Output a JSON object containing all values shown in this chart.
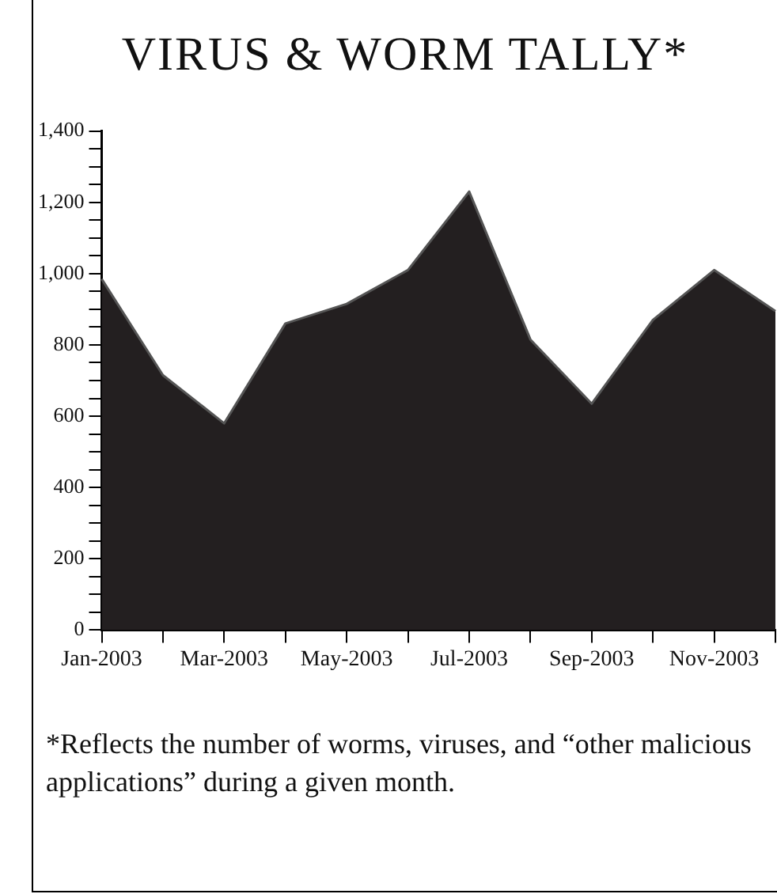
{
  "chart_data": {
    "type": "area",
    "title": "VIRUS & WORM TALLY*",
    "categories": [
      "Jan-2003",
      null,
      "Mar-2003",
      null,
      "May-2003",
      null,
      "Jul-2003",
      null,
      "Sep-2003",
      null,
      "Nov-2003",
      null
    ],
    "series": [
      {
        "color": "#231f20",
        "values": [
          985,
          715,
          580,
          860,
          915,
          1010,
          1230,
          815,
          635,
          870,
          1010,
          895
        ]
      }
    ],
    "ylim": [
      0,
      1400
    ],
    "yticks": [
      0,
      {
        "value": 50,
        "label": null
      },
      {
        "value": 100,
        "label": null
      },
      {
        "value": 150,
        "label": null
      },
      200,
      {
        "value": 250,
        "label": null
      },
      {
        "value": 300,
        "label": null
      },
      {
        "value": 350,
        "label": null
      },
      400,
      {
        "value": 450,
        "label": null
      },
      {
        "value": 500,
        "label": null
      },
      {
        "value": 550,
        "label": null
      },
      600,
      {
        "value": 650,
        "label": null
      },
      {
        "value": 700,
        "label": null
      },
      {
        "value": 750,
        "label": null
      },
      800,
      {
        "value": 850,
        "label": null
      },
      {
        "value": 900,
        "label": null
      },
      {
        "value": 950,
        "label": null
      },
      {
        "value": 1000,
        "label": "1,000"
      },
      {
        "value": 1050,
        "label": null
      },
      {
        "value": 1100,
        "label": null
      },
      {
        "value": 1150,
        "label": null
      },
      {
        "value": 1200,
        "label": "1,200"
      },
      {
        "value": 1250,
        "label": null
      },
      {
        "value": 1300,
        "label": null
      },
      {
        "value": 1350,
        "label": null
      },
      {
        "value": 1400,
        "label": "1,400"
      }
    ],
    "grid": false,
    "legend": false,
    "annotations": [
      "*Reflects the number of worms, viruses, and “other malicious applications” during a given month."
    ]
  }
}
